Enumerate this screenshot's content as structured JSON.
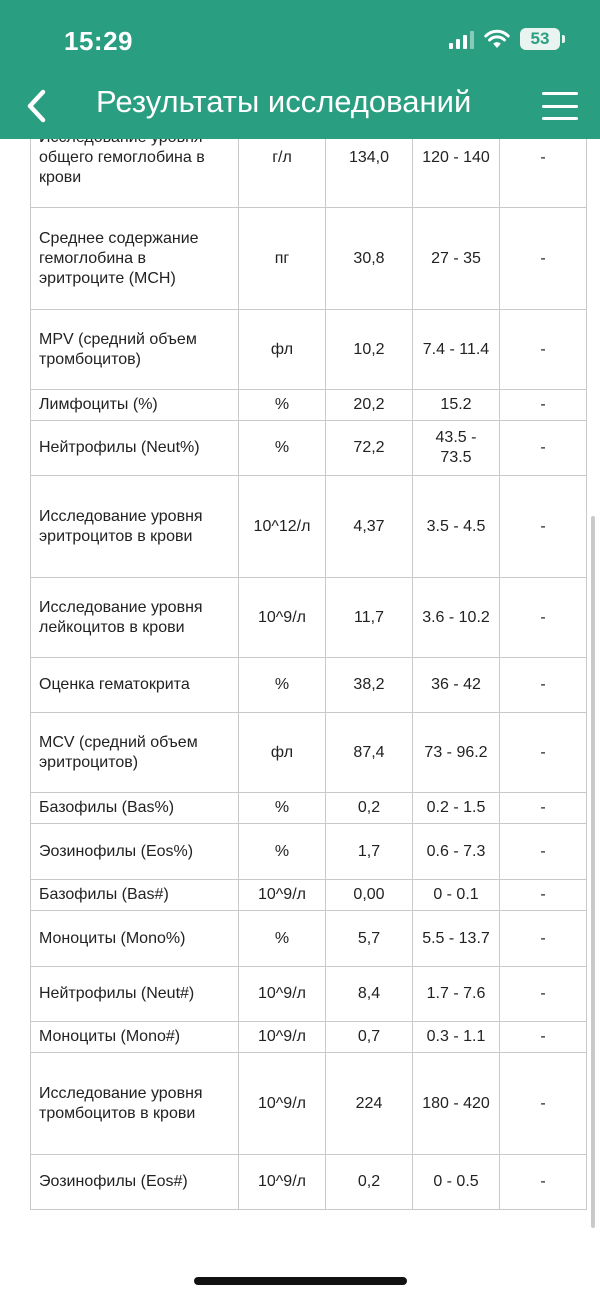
{
  "status_bar": {
    "time": "15:29",
    "battery": "53",
    "icons": [
      "cellular-signal-icon",
      "wifi-icon",
      "battery-icon"
    ]
  },
  "header": {
    "title": "Результаты исследований",
    "back_icon": "chevron-left-icon",
    "menu_icon": "hamburger-menu-icon",
    "background": "#2a9e80"
  },
  "results": [
    {
      "name": "Исследование уровня общего гемоглобина в крови",
      "unit": "г/л",
      "value": "134,0",
      "range": "120 - 140",
      "flag": "-"
    },
    {
      "name": "Среднее содержание гемоглобина в эритроците (MCH)",
      "unit": "пг",
      "value": "30,8",
      "range": "27 - 35",
      "flag": "-"
    },
    {
      "name": "MPV (средний объем тромбоцитов)",
      "unit": "фл",
      "value": "10,2",
      "range": "7.4 - 11.4",
      "flag": "-"
    },
    {
      "name": "Лимфоциты (%)",
      "unit": "%",
      "value": "20,2",
      "range": "15.2",
      "flag": "-"
    },
    {
      "name": "Нейтрофилы (Neut%)",
      "unit": "%",
      "value": "72,2",
      "range": "43.5 - 73.5",
      "flag": "-"
    },
    {
      "name": "Исследование уровня эритроцитов в крови",
      "unit": "10^12/л",
      "value": "4,37",
      "range": "3.5 - 4.5",
      "flag": "-"
    },
    {
      "name": "Исследование уровня лейкоцитов в крови",
      "unit": "10^9/л",
      "value": "11,7",
      "range": "3.6 - 10.2",
      "flag": "-"
    },
    {
      "name": "Оценка гематокрита",
      "unit": "%",
      "value": "38,2",
      "range": "36 - 42",
      "flag": "-"
    },
    {
      "name": "MCV (средний объем эритроцитов)",
      "unit": "фл",
      "value": "87,4",
      "range": "73 - 96.2",
      "flag": "-"
    },
    {
      "name": "Базофилы (Bas%)",
      "unit": "%",
      "value": "0,2",
      "range": "0.2 - 1.5",
      "flag": "-"
    },
    {
      "name": "Эозинофилы (Eos%)",
      "unit": "%",
      "value": "1,7",
      "range": "0.6 - 7.3",
      "flag": "-"
    },
    {
      "name": "Базофилы (Bas#)",
      "unit": "10^9/л",
      "value": "0,00",
      "range": "0 - 0.1",
      "flag": "-"
    },
    {
      "name": "Моноциты (Mono%)",
      "unit": "%",
      "value": "5,7",
      "range": "5.5 - 13.7",
      "flag": "-"
    },
    {
      "name": "Нейтрофилы (Neut#)",
      "unit": "10^9/л",
      "value": "8,4",
      "range": "1.7 - 7.6",
      "flag": "-"
    },
    {
      "name": "Моноциты (Mono#)",
      "unit": "10^9/л",
      "value": "0,7",
      "range": "0.3 - 1.1",
      "flag": "-"
    },
    {
      "name": "Исследование уровня тромбоцитов в крови",
      "unit": "10^9/л",
      "value": "224",
      "range": "180 - 420",
      "flag": "-"
    },
    {
      "name": "Эозинофилы (Eos#)",
      "unit": "10^9/л",
      "value": "0,2",
      "range": "0 - 0.5",
      "flag": "-"
    }
  ]
}
